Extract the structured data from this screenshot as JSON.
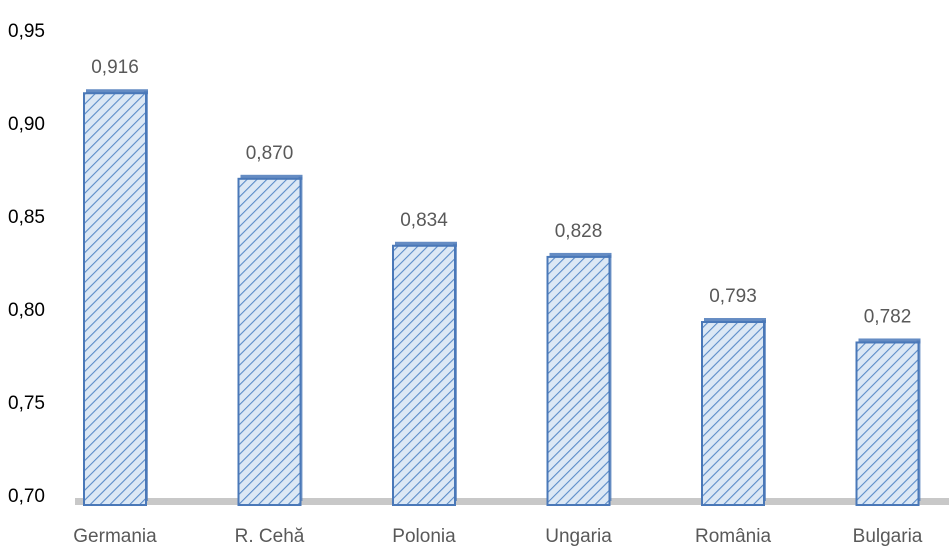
{
  "chart_data": {
    "type": "bar",
    "categories": [
      "Germania",
      "R. Cehă",
      "Polonia",
      "Ungaria",
      "România",
      "Bulgaria"
    ],
    "values": [
      0.916,
      0.87,
      0.834,
      0.828,
      0.793,
      0.782
    ],
    "value_labels": [
      "0,916",
      "0,870",
      "0,834",
      "0,828",
      "0,793",
      "0,782"
    ],
    "ylim": [
      0.7,
      0.95
    ],
    "y_ticks": [
      0.7,
      0.75,
      0.8,
      0.85,
      0.9,
      0.95
    ],
    "y_tick_labels": [
      "0,70",
      "0,75",
      "0,80",
      "0,85",
      "0,90",
      "0,95"
    ],
    "title": "",
    "xlabel": "",
    "ylabel": "",
    "grid": false,
    "legend": "none",
    "colors": {
      "bar_fill": "#dce8f5",
      "bar_hatch": "#5b8cc8",
      "bar_border": "#4a78b8",
      "floor": "#c8c8c8",
      "label_text": "#595959",
      "tick_text": "#000000"
    }
  }
}
